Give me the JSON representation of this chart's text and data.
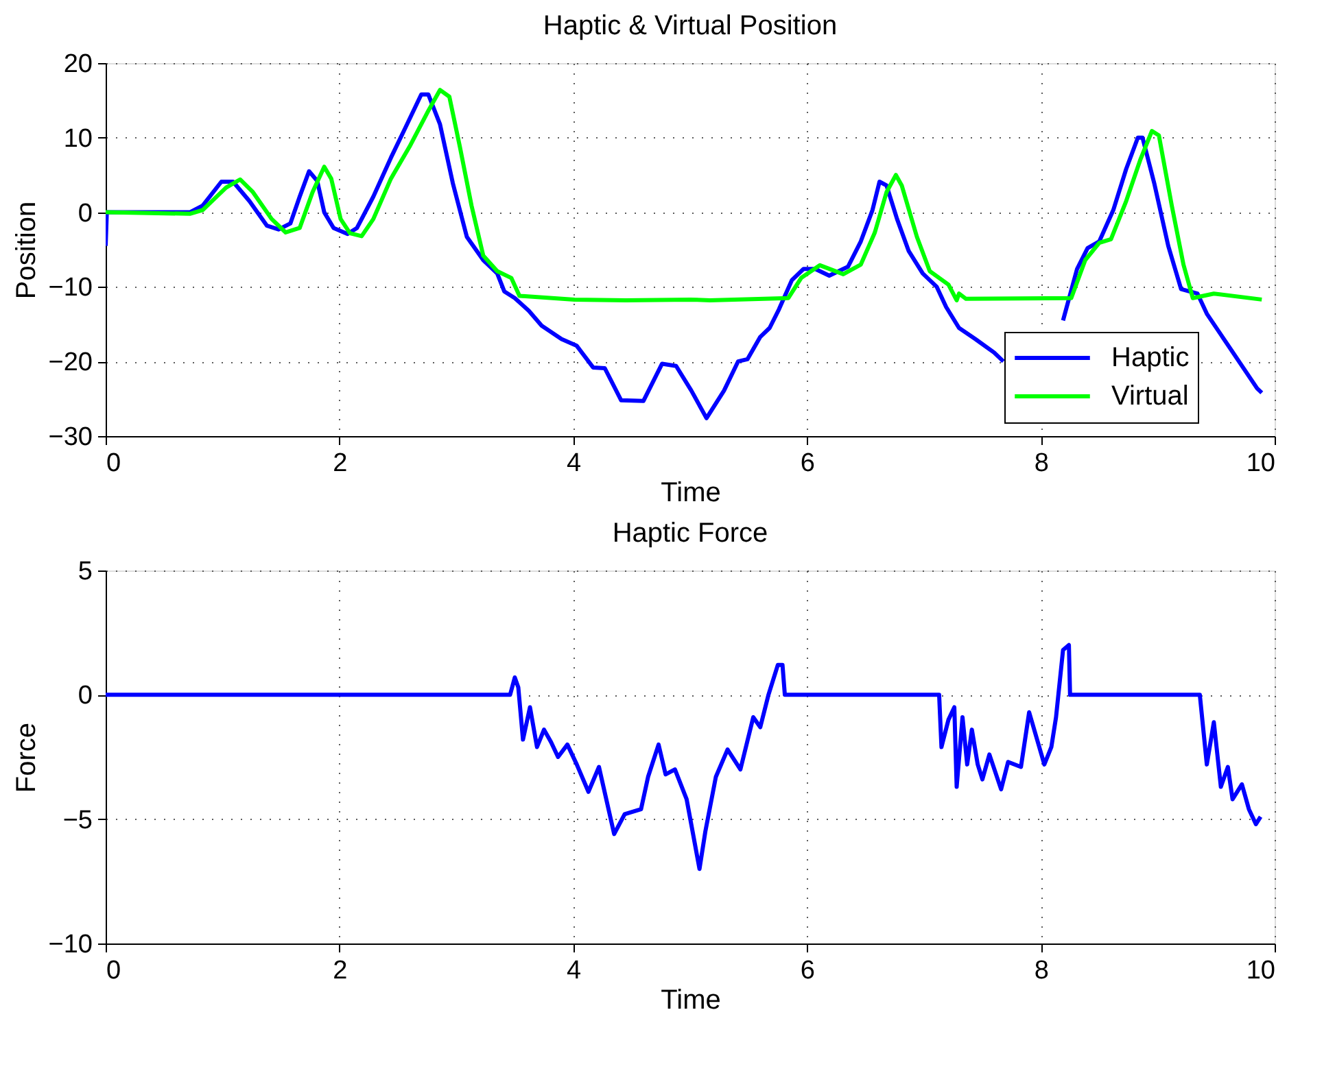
{
  "chart_data": [
    {
      "type": "line",
      "title": "Haptic & Virtual Position",
      "xlabel": "Time",
      "ylabel": "Position",
      "xlim": [
        0,
        10
      ],
      "xticks": [
        0,
        2,
        4,
        6,
        8,
        10
      ],
      "ylim": [
        -30,
        20
      ],
      "yticks": [
        -30,
        -20,
        -10,
        0,
        10,
        20
      ],
      "grid": true,
      "legend": "bottom right",
      "line_style": "solid",
      "marker": "none",
      "series": [
        {
          "name": "Haptic",
          "color": "#0000ff",
          "x": [
            0,
            0.01,
            0.72,
            0.83,
            0.99,
            1.09,
            1.23,
            1.38,
            1.48,
            1.58,
            1.66,
            1.74,
            1.81,
            1.87,
            1.95,
            2.07,
            2.15,
            2.29,
            2.44,
            2.56,
            2.7,
            2.76,
            2.86,
            2.97,
            3.09,
            3.23,
            3.35,
            3.41,
            3.5,
            3.62,
            3.73,
            3.9,
            4.03,
            4.17,
            4.27,
            4.41,
            4.6,
            4.76,
            4.88,
            5.01,
            5.14,
            5.29,
            5.41,
            5.49,
            5.6,
            5.68,
            5.76,
            5.87,
            5.97,
            6.07,
            6.19,
            6.35,
            6.46,
            6.56,
            6.62,
            6.68,
            6.77,
            6.87,
            6.99,
            7.11,
            7.19,
            7.3,
            7.44,
            7.6,
            7.68,
            7.9,
            8.19,
            8.31,
            8.4,
            8.5,
            8.62,
            8.73,
            8.83,
            8.87,
            8.97,
            9.09,
            9.2,
            9.34,
            9.42,
            9.85,
            9.87,
            9.89
          ],
          "values": [
            -4.5,
            0,
            0,
            0.9,
            4.1,
            4.1,
            1.5,
            -1.8,
            -2.3,
            -1.5,
            2.1,
            5.5,
            4.2,
            0,
            -2.1,
            -2.9,
            -2.1,
            2.1,
            7.3,
            11.2,
            15.8,
            15.8,
            11.8,
            3.9,
            -3.3,
            -6.4,
            -8.2,
            -10.6,
            -11.5,
            -13.2,
            -15.2,
            -17,
            -17.9,
            -20.8,
            -20.9,
            -25.2,
            -25.3,
            -20.3,
            -20.6,
            -23.9,
            -27.6,
            -23.9,
            -20,
            -19.7,
            -16.7,
            -15.5,
            -13,
            -9.1,
            -7.6,
            -7.6,
            -8.5,
            -7.3,
            -3.9,
            0.3,
            4.1,
            3.6,
            -0.9,
            -5.2,
            -8.2,
            -10,
            -12.7,
            -15.5,
            -17,
            -18.8,
            -20,
            null,
            -14.5,
            -7.6,
            -4.8,
            -3.9,
            0.3,
            5.8,
            10,
            10,
            3.9,
            -4.5,
            -10.3,
            -10.9,
            -13.6,
            -23.6,
            -23.9,
            -24.2
          ]
        },
        {
          "name": "Virtual",
          "color": "#00ff00",
          "x": [
            0,
            0.72,
            0.83,
            1.03,
            1.15,
            1.26,
            1.42,
            1.54,
            1.66,
            1.77,
            1.87,
            1.93,
            2.01,
            2.09,
            2.19,
            2.29,
            2.44,
            2.6,
            2.76,
            2.86,
            2.94,
            3.03,
            3.13,
            3.23,
            3.35,
            3.47,
            3.54,
            4.01,
            4.45,
            5.0,
            5.17,
            5.84,
            5.95,
            6.11,
            6.31,
            6.46,
            6.58,
            6.68,
            6.76,
            6.81,
            6.94,
            7.05,
            7.21,
            7.28,
            7.3,
            7.36,
            8.26,
            8.38,
            8.5,
            8.6,
            8.73,
            8.85,
            8.95,
            9.01,
            9.12,
            9.22,
            9.3,
            9.48,
            9.89
          ],
          "values": [
            0,
            -0.2,
            0.3,
            3.3,
            4.4,
            2.7,
            -0.9,
            -2.7,
            -2.1,
            2.7,
            6.1,
            4.5,
            -0.9,
            -2.8,
            -3.2,
            -0.9,
            4.5,
            8.8,
            13.6,
            16.4,
            15.5,
            8.8,
            0.9,
            -5.8,
            -7.9,
            -8.8,
            -11.2,
            -11.7,
            -11.8,
            -11.7,
            -11.8,
            -11.5,
            -8.8,
            -7.1,
            -8.3,
            -7,
            -2.7,
            2.7,
            5,
            3.6,
            -3.3,
            -7.9,
            -9.7,
            -11.8,
            -10.9,
            -11.6,
            -11.5,
            -6.4,
            -4.1,
            -3.6,
            1.5,
            7,
            10.9,
            10.3,
            0.9,
            -7,
            -11.5,
            -10.9,
            -11.7
          ]
        }
      ]
    },
    {
      "type": "line",
      "title": "Haptic Force",
      "xlabel": "Time",
      "ylabel": "Force",
      "xlim": [
        0,
        10
      ],
      "xticks": [
        0,
        2,
        4,
        6,
        8,
        10
      ],
      "ylim": [
        -10,
        5
      ],
      "yticks": [
        -10,
        -5,
        0,
        5
      ],
      "grid": true,
      "line_style": "solid",
      "marker": "none",
      "series": [
        {
          "color": "#0000ff",
          "x": [
            0,
            3.46,
            3.5,
            3.53,
            3.57,
            3.63,
            3.69,
            3.75,
            3.81,
            3.87,
            3.95,
            4.03,
            4.13,
            4.22,
            4.35,
            4.44,
            4.58,
            4.64,
            4.73,
            4.79,
            4.87,
            4.97,
            5.08,
            5.13,
            5.22,
            5.32,
            5.43,
            5.54,
            5.6,
            5.67,
            5.75,
            5.79,
            5.81,
            7.13,
            7.15,
            7.21,
            7.26,
            7.28,
            7.33,
            7.37,
            7.41,
            7.46,
            7.5,
            7.56,
            7.66,
            7.72,
            7.83,
            7.9,
            8.03,
            8.09,
            8.13,
            8.19,
            8.24,
            8.25,
            9.36,
            9.42,
            9.48,
            9.54,
            9.6,
            9.64,
            9.72,
            9.78,
            9.84,
            9.88
          ],
          "values": [
            0,
            0,
            0.7,
            0.3,
            -1.8,
            -0.5,
            -2.1,
            -1.4,
            -1.9,
            -2.5,
            -2.0,
            -2.8,
            -3.9,
            -2.9,
            -5.6,
            -4.8,
            -4.6,
            -3.3,
            -2.0,
            -3.2,
            -3.0,
            -4.2,
            -7.0,
            -5.5,
            -3.3,
            -2.2,
            -3.0,
            -0.9,
            -1.3,
            0,
            1.2,
            1.2,
            0,
            0,
            -2.1,
            -1.0,
            -0.5,
            -3.7,
            -0.9,
            -2.8,
            -1.4,
            -2.8,
            -3.4,
            -2.4,
            -3.8,
            -2.7,
            -2.9,
            -0.7,
            -2.8,
            -2.1,
            -0.9,
            1.8,
            2.0,
            0,
            0,
            -2.8,
            -1.1,
            -3.7,
            -2.9,
            -4.2,
            -3.6,
            -4.6,
            -5.2,
            -4.9
          ]
        }
      ]
    }
  ]
}
